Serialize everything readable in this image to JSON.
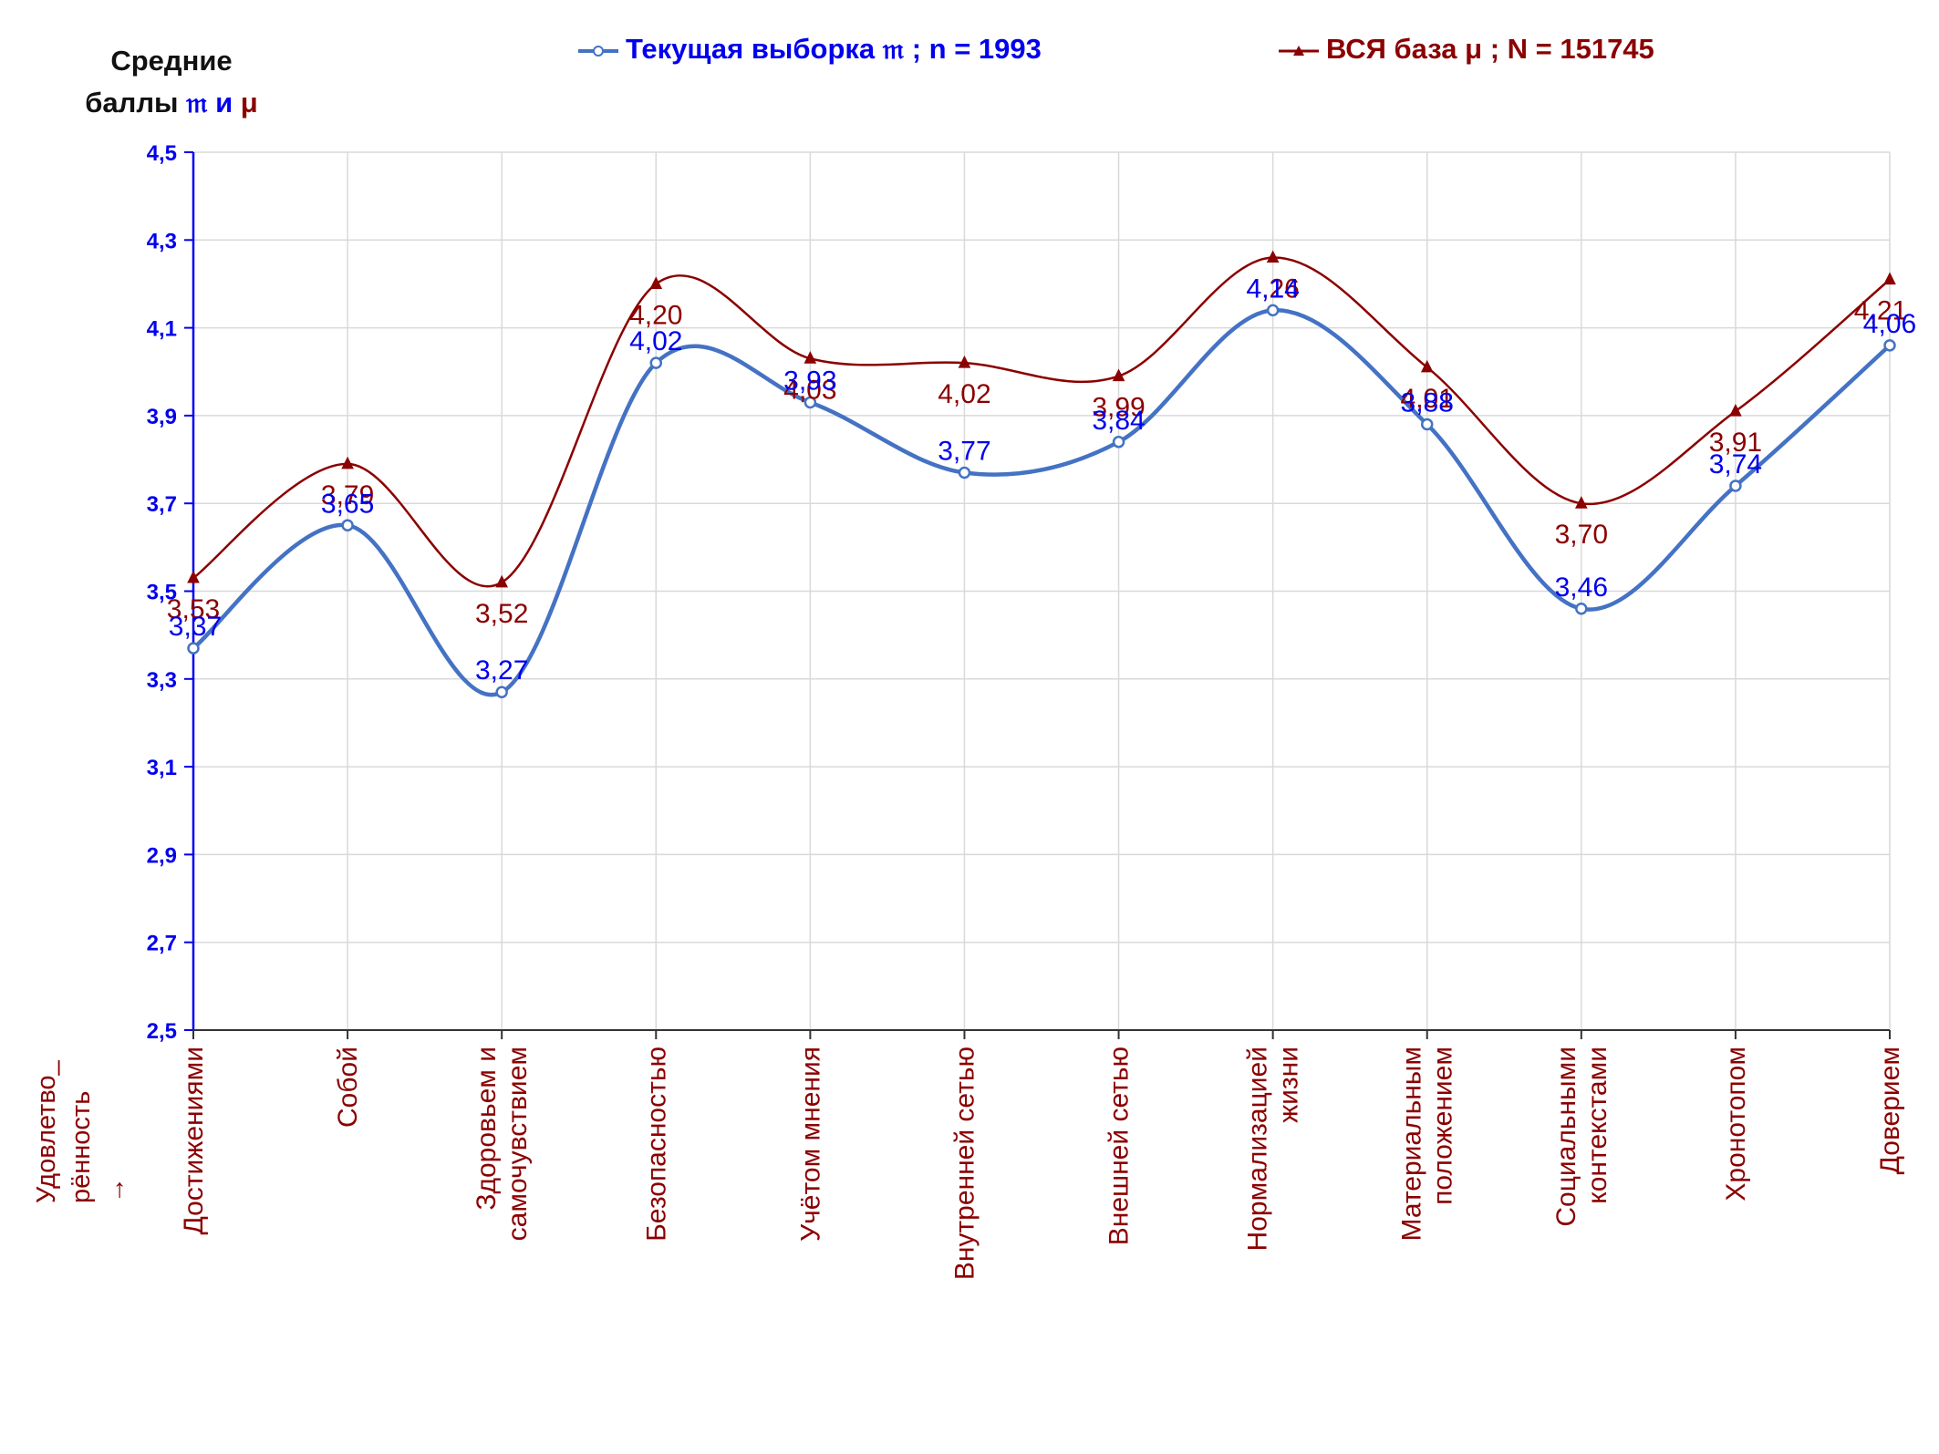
{
  "y_title": {
    "line1": "Средние",
    "line2_prefix": "баллы",
    "sym_sample": "𝔪",
    "conj": "и",
    "sym_base": "μ"
  },
  "x_corner_label": "Удовлетво_\nрённость\n→",
  "colors": {
    "sample": "#4472c4",
    "sample_label": "#0000ee",
    "base": "#8b0000",
    "axis": "#0000ee",
    "grid": "#d9d9d9"
  },
  "chart_data": {
    "type": "line",
    "smooth": true,
    "grid": true,
    "legend_position": "top",
    "title": "",
    "xlabel": "Удовлетво_ рённость →",
    "ylabel": "Средние баллы 𝔪 и μ",
    "ylim": [
      2.5,
      4.5
    ],
    "yticks": [
      "2,5",
      "2,7",
      "2,9",
      "3,1",
      "3,3",
      "3,5",
      "3,7",
      "3,9",
      "4,1",
      "4,3",
      "4,5"
    ],
    "categories": [
      "Достижениями",
      "Собой",
      "Здоровьем и\nсамочувствием",
      "Безопасностью",
      "Учётом мнения",
      "Внутренней сетью",
      "Внешней сетью",
      "Нормализацией\nжизни",
      "Материальным\nположением",
      "Социальными\nконтекстами",
      "Хронотопом",
      "Доверием"
    ],
    "series": [
      {
        "name": "Текущая выборка 𝔪 ; n = 1993",
        "marker": "circle",
        "values": [
          3.37,
          3.65,
          3.27,
          4.02,
          3.93,
          3.77,
          3.84,
          4.14,
          3.88,
          3.46,
          3.74,
          4.06
        ],
        "labels": [
          "3,37",
          "3,65",
          "3,27",
          "4,02",
          "3,93",
          "3,77",
          "3,84",
          "4,14",
          "3,88",
          "3,46",
          "3,74",
          "4,06"
        ]
      },
      {
        "name": "ВСЯ база μ ; N = 151745",
        "marker": "triangle",
        "values": [
          3.53,
          3.79,
          3.52,
          4.2,
          4.03,
          4.02,
          3.99,
          4.26,
          4.01,
          3.7,
          3.91,
          4.21
        ],
        "labels": [
          "3,53",
          "3,79",
          "3,52",
          "4,20",
          "4,03",
          "4,02",
          "3,99",
          "4,26",
          "4,01",
          "3,70",
          "3,91",
          "4,21"
        ]
      }
    ]
  }
}
